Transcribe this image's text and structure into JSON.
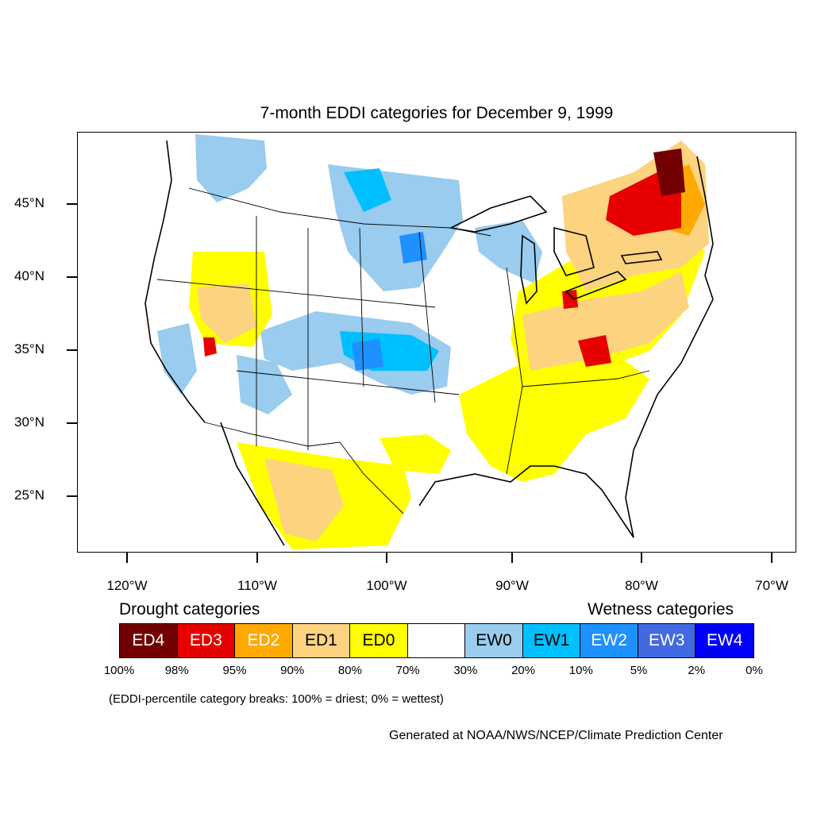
{
  "title": "7-month EDDI categories for December 9, 1999",
  "lat_labels": [
    "45°N",
    "40°N",
    "35°N",
    "30°N",
    "25°N"
  ],
  "lon_labels": [
    "120°W",
    "110°W",
    "100°W",
    "90°W",
    "80°W",
    "70°W"
  ],
  "legend": {
    "drought_heading": "Drought categories",
    "wetness_heading": "Wetness categories",
    "categories": [
      {
        "label": "ED4",
        "color": "#730000",
        "text_color": "#ffffff"
      },
      {
        "label": "ED3",
        "color": "#e60000",
        "text_color": "#ffffff"
      },
      {
        "label": "ED2",
        "color": "#ffaa00",
        "text_color": "#ffffff"
      },
      {
        "label": "ED1",
        "color": "#fcd37f",
        "text_color": "#000000"
      },
      {
        "label": "ED0",
        "color": "#ffff00",
        "text_color": "#000000"
      },
      {
        "label": "",
        "color": "#ffffff",
        "text_color": "#000000"
      },
      {
        "label": "EW0",
        "color": "#99ccee",
        "text_color": "#000000"
      },
      {
        "label": "EW1",
        "color": "#00bfff",
        "text_color": "#000000"
      },
      {
        "label": "EW2",
        "color": "#1e90ff",
        "text_color": "#ffffff"
      },
      {
        "label": "EW3",
        "color": "#4169e1",
        "text_color": "#ffffff"
      },
      {
        "label": "EW4",
        "color": "#0000ff",
        "text_color": "#ffffff"
      }
    ],
    "percent_breaks": [
      "100%",
      "98%",
      "95%",
      "90%",
      "80%",
      "70%",
      "30%",
      "20%",
      "10%",
      "5%",
      "2%",
      "0%"
    ]
  },
  "note": "(EDDI-percentile category breaks: 100% = driest; 0% = wettest)",
  "credit": "Generated at NOAA/NWS/NCEP/Climate Prediction Center"
}
